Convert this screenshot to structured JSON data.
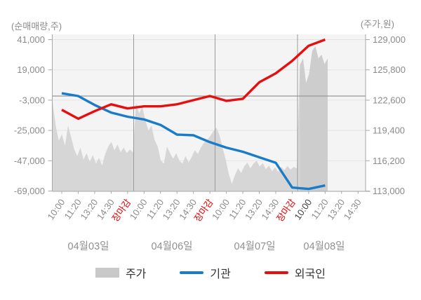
{
  "chart_data": {
    "type": "line",
    "title": "",
    "description": "Intraday stock price (gray area, right axis) vs cumulative net buying of institutions and foreigners (lines, left axis) over 4 trading days",
    "left_axis": {
      "label": "(순매매량,주)",
      "ticks": [
        41000,
        19000,
        -3000,
        -25000,
        -47000,
        -69000
      ],
      "range": [
        -69000,
        41000
      ]
    },
    "right_axis": {
      "label": "(주가,원)",
      "ticks": [
        129000,
        125800,
        122600,
        119400,
        116200,
        113000
      ],
      "range": [
        113000,
        129000
      ]
    },
    "x_days": [
      {
        "date": "04월03일",
        "times": [
          "10:00",
          "11:20",
          "13:20",
          "14:30",
          "장마감"
        ]
      },
      {
        "date": "04월06일",
        "times": [
          "10:00",
          "11:20",
          "13:20",
          "14:30",
          "장마감"
        ]
      },
      {
        "date": "04월07일",
        "times": [
          "10:00",
          "11:20",
          "13:20",
          "14:30",
          "장마감"
        ]
      },
      {
        "date": "04월08일",
        "times": [
          "10:00",
          "11:20",
          "13:20",
          "14:30"
        ]
      }
    ],
    "series": [
      {
        "name": "주가",
        "type": "area",
        "axis": "right",
        "color": "#d6d6d6",
        "color_current_day": "#cdcdcd",
        "values": [
          122400,
          119900,
          118300,
          119000,
          117800,
          119900,
          118700,
          117400,
          116700,
          117600,
          116300,
          117000,
          116100,
          116800,
          115900,
          116500,
          115700,
          116900,
          117700,
          118200,
          117300,
          117900,
          117100,
          117600,
          117000,
          117400,
          117100,
          122300,
          121200,
          121900,
          120500,
          119400,
          119900,
          118400,
          117700,
          116200,
          115900,
          117700,
          117000,
          116400,
          117000,
          116200,
          115900,
          116700,
          116000,
          116600,
          117300,
          116900,
          117600,
          118100,
          118400,
          118800,
          119300,
          119700,
          118900,
          117600,
          116300,
          114800,
          113750,
          114700,
          115400,
          114900,
          115600,
          116000,
          115400,
          115900,
          116200,
          115600,
          115950,
          115300,
          115700,
          115100,
          115500,
          115000,
          115550,
          115200,
          115650,
          115250,
          115550,
          115400,
          126300,
          127000,
          124400,
          125400,
          127800,
          128300,
          127000,
          127400,
          126400,
          127000
        ]
      },
      {
        "name": "기관",
        "type": "line",
        "axis": "left",
        "color": "#1a7cc9",
        "values": [
          2000,
          0,
          -6500,
          -12000,
          -15000,
          -17000,
          -21000,
          -28000,
          -28500,
          -33500,
          -37500,
          -40500,
          -44500,
          -48500,
          -66500,
          -67500,
          -65000,
          null,
          null
        ]
      },
      {
        "name": "외국인",
        "type": "line",
        "axis": "left",
        "color": "#e60f0f",
        "values": [
          -10000,
          -16500,
          -11000,
          -6000,
          -9000,
          -7500,
          -7500,
          -6000,
          -3000,
          0,
          -3500,
          -2000,
          10000,
          16500,
          25500,
          36500,
          41000,
          null,
          null
        ]
      }
    ],
    "colors": {
      "plot_bg": "#f4f4f4",
      "grid": "#e3e3e3",
      "zero_line": "#999999",
      "day_boundary": "#9b9b9b",
      "axis_line": "#a8a8a8",
      "axis_text": "#8b8b8b",
      "date_text": "#8f8f8f",
      "close_label": "#e60000",
      "current_time_label": "#3f3f3f",
      "legend_text": "#333333",
      "legend_area_swatch": "#c9c9c9"
    },
    "grid": true,
    "legend_position": "bottom"
  },
  "legend": {
    "price": "주가",
    "institution": "기관",
    "foreigner": "외국인"
  }
}
